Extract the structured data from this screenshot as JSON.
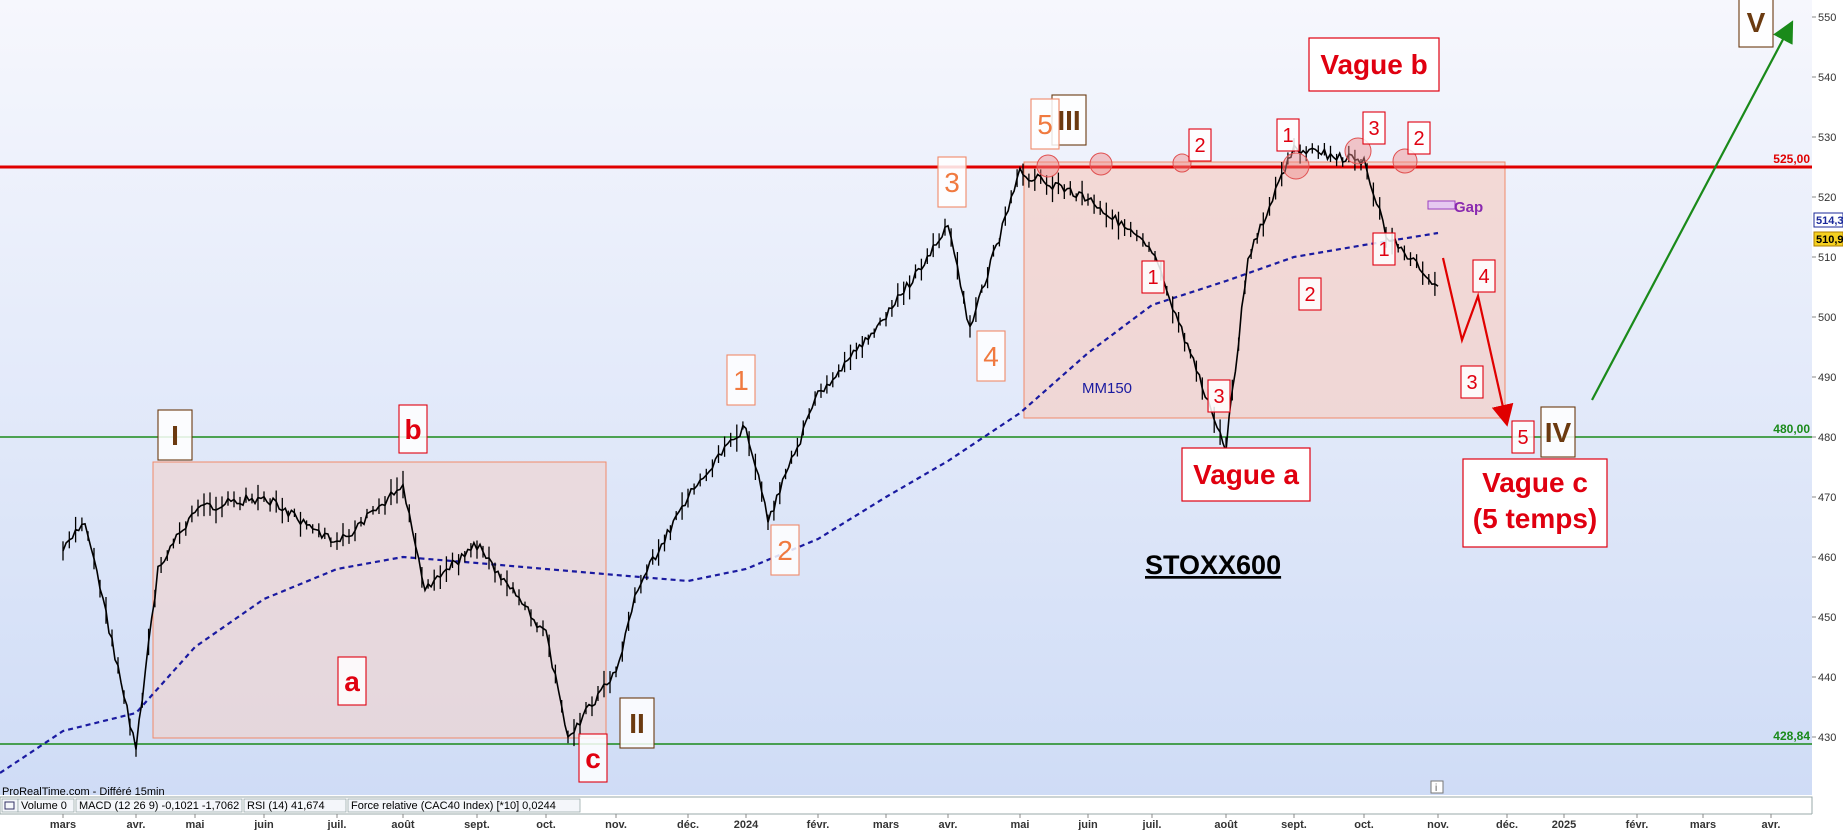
{
  "chart_data": {
    "type": "line",
    "title": "STOXX600",
    "subtitle": "",
    "ylim": [
      424,
      556
    ],
    "y_ticks": [
      430,
      440,
      450,
      460,
      470,
      480,
      490,
      500,
      510,
      520,
      530,
      540,
      550
    ],
    "x_labels": [
      "mars",
      "avr.",
      "mai",
      "juin",
      "juil.",
      "août",
      "sept.",
      "oct.",
      "nov.",
      "déc.",
      "2024",
      "févr.",
      "mars",
      "avr.",
      "mai",
      "juin",
      "juil.",
      "août",
      "sept.",
      "oct.",
      "nov.",
      "déc.",
      "2025",
      "févr.",
      "mars",
      "avr."
    ],
    "price_line": {
      "name": "",
      "x": [
        "2023-03",
        "2023-03",
        "2023-04",
        "2023-04",
        "2023-05",
        "2023-06",
        "2023-07",
        "2023-08",
        "2023-08",
        "2023-09",
        "2023-10",
        "2023-10",
        "2023-11",
        "2023-11",
        "2023-12",
        "2024-01",
        "2024-01",
        "2024-02",
        "2024-03",
        "2024-04",
        "2024-04",
        "2024-05",
        "2024-06",
        "2024-07",
        "2024-08",
        "2024-08",
        "2024-09",
        "2024-10",
        "2024-10",
        "2024-11"
      ],
      "y": [
        461,
        466,
        428,
        458,
        468,
        470,
        462,
        472,
        455,
        462,
        447,
        430,
        441,
        455,
        470,
        482,
        466,
        487,
        500,
        515,
        498,
        524,
        520,
        511,
        478,
        510,
        528,
        526,
        514,
        505
      ]
    },
    "ma_line": {
      "name": "MM150",
      "x": [
        "2023-02",
        "2023-03",
        "2023-04",
        "2023-05",
        "2023-06",
        "2023-07",
        "2023-08",
        "2023-09",
        "2023-10",
        "2023-11",
        "2023-12",
        "2024-01",
        "2024-02",
        "2024-03",
        "2024-04",
        "2024-05",
        "2024-06",
        "2024-07",
        "2024-08",
        "2024-09",
        "2024-10",
        "2024-11"
      ],
      "y": [
        424,
        431,
        434,
        445,
        453,
        458,
        460,
        459,
        458,
        457,
        456,
        458,
        463,
        470,
        476,
        484,
        494,
        502,
        506,
        510,
        512,
        514
      ]
    },
    "levels": [
      {
        "value": 525,
        "label": "525,00",
        "color": "#e00000"
      },
      {
        "value": 480,
        "label": "480,00",
        "color": "#1a8a1a"
      },
      {
        "value": 428.84,
        "label": "428,84",
        "color": "#1a8a1a"
      }
    ],
    "price_tags": [
      {
        "label": "514,3",
        "color": "#1b2a9a"
      },
      {
        "label": "510,9",
        "color": "#d4a000"
      }
    ],
    "annotations": [
      {
        "text": "I",
        "style": "major"
      },
      {
        "text": "II",
        "style": "major"
      },
      {
        "text": "III",
        "style": "major"
      },
      {
        "text": "IV",
        "style": "major"
      },
      {
        "text": "V",
        "style": "major"
      },
      {
        "text": "a",
        "style": "red"
      },
      {
        "text": "b",
        "style": "red"
      },
      {
        "text": "c",
        "style": "red"
      },
      {
        "text": "1",
        "style": "orange"
      },
      {
        "text": "2",
        "style": "orange"
      },
      {
        "text": "3",
        "style": "orange"
      },
      {
        "text": "4",
        "style": "orange"
      },
      {
        "text": "5",
        "style": "orange"
      },
      {
        "text": "1",
        "style": "redsmall"
      },
      {
        "text": "2",
        "style": "redsmall"
      },
      {
        "text": "3",
        "style": "redsmall"
      },
      {
        "text": "1",
        "style": "redsmall"
      },
      {
        "text": "2",
        "style": "redsmall"
      },
      {
        "text": "3",
        "style": "redsmall"
      },
      {
        "text": "1",
        "style": "redsmall"
      },
      {
        "text": "2",
        "style": "redsmall"
      },
      {
        "text": "3",
        "style": "redsmall"
      },
      {
        "text": "4",
        "style": "redsmall"
      },
      {
        "text": "5",
        "style": "redsmall"
      }
    ],
    "big_labels": [
      "Vague b",
      "Vague a",
      "Vague c",
      "(5 temps)"
    ],
    "gap_label": "Gap",
    "ma_label": "MM150",
    "grid": false,
    "source": "ProRealTime.com - Différé 15min",
    "indicators": [
      "Volume",
      "0",
      "MACD (12 26 9)",
      "-0,1021",
      "-1,7062",
      "RSI (14)",
      "41,674",
      "Force relative (CAC40 Index) [*10]",
      "0,0244"
    ],
    "colors": {
      "price": "#000000",
      "ma": "#1a1aa0",
      "resistance": "#e00000",
      "support": "#1a8a1a",
      "box_fill": "#f5cfc6",
      "box_stroke": "#f08a6a",
      "bg_top": "#f6f7fd",
      "bg_bottom": "#cfdcf6",
      "projection": "#e00000",
      "bull": "#1a8a1a",
      "orange": "#f07a40",
      "red": "#e00010",
      "major": "#6b3a10"
    }
  }
}
